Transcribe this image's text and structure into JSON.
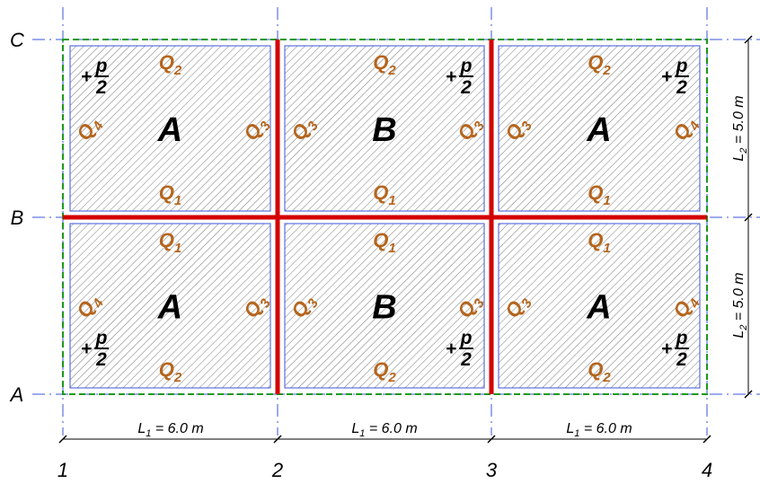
{
  "grid": {
    "columns": [
      "1",
      "2",
      "3",
      "4"
    ],
    "rows": [
      "C",
      "B",
      "A"
    ]
  },
  "dimensions": {
    "span_x": {
      "base": "L",
      "sub": "1",
      "rest": " = 6.0 m"
    },
    "span_y": {
      "base": "L",
      "sub": "2",
      "rest": " = 5.0 m"
    }
  },
  "labels": {
    "q_base": "Q",
    "q1": "1",
    "q2": "2",
    "q3": "3",
    "q4": "4",
    "plus": "+",
    "p": "p",
    "two": "2"
  },
  "panels": [
    {
      "label": "A"
    },
    {
      "label": "B"
    },
    {
      "label": "A"
    },
    {
      "label": "A"
    },
    {
      "label": "B"
    },
    {
      "label": "A"
    }
  ],
  "colors": {
    "grid_line": "#3b55d9",
    "outline": "#1a9a1a",
    "beam": "#d40000",
    "load_text": "#b5651d",
    "hatch": "#7a7a7a"
  }
}
